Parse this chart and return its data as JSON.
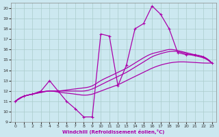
{
  "xlabel": "Windchill (Refroidissement éolien,°C)",
  "xlim": [
    -0.5,
    23.5
  ],
  "ylim": [
    9,
    20.5
  ],
  "yticks": [
    9,
    10,
    11,
    12,
    13,
    14,
    15,
    16,
    17,
    18,
    19,
    20
  ],
  "xticks": [
    0,
    1,
    2,
    3,
    4,
    5,
    6,
    7,
    8,
    9,
    10,
    11,
    12,
    13,
    14,
    15,
    16,
    17,
    18,
    19,
    20,
    21,
    22,
    23
  ],
  "background_color": "#cce8f0",
  "line_color": "#aa00aa",
  "grid_color": "#aacccc",
  "jagged_x": [
    0,
    1,
    2,
    3,
    4,
    5,
    6,
    7,
    8,
    9,
    10,
    11,
    12,
    13,
    14,
    15,
    16,
    17,
    18,
    19,
    20,
    21,
    22,
    23
  ],
  "jagged_y": [
    11.0,
    11.5,
    11.7,
    12.0,
    13.0,
    12.0,
    11.0,
    10.3,
    9.5,
    9.5,
    17.5,
    17.3,
    12.5,
    14.5,
    18.0,
    18.5,
    20.2,
    19.4,
    18.0,
    15.7,
    15.5,
    15.5,
    15.3,
    14.7
  ],
  "smooth1_x": [
    0,
    1,
    2,
    3,
    4,
    5,
    6,
    7,
    8,
    9,
    10,
    11,
    12,
    13,
    14,
    15,
    16,
    17,
    18,
    19,
    20,
    21,
    22,
    23
  ],
  "smooth1_y": [
    11.0,
    11.5,
    11.7,
    11.85,
    12.0,
    11.9,
    11.8,
    11.7,
    11.6,
    11.7,
    12.0,
    12.3,
    12.6,
    13.0,
    13.4,
    13.8,
    14.2,
    14.5,
    14.7,
    14.8,
    14.8,
    14.75,
    14.7,
    14.7
  ],
  "smooth2_x": [
    0,
    1,
    2,
    3,
    4,
    5,
    6,
    7,
    8,
    9,
    10,
    11,
    12,
    13,
    14,
    15,
    16,
    17,
    18,
    19,
    20,
    21,
    22,
    23
  ],
  "smooth2_y": [
    11.0,
    11.5,
    11.7,
    11.9,
    12.0,
    12.0,
    12.0,
    12.0,
    12.0,
    12.2,
    12.6,
    13.0,
    13.4,
    13.8,
    14.3,
    14.8,
    15.3,
    15.6,
    15.8,
    15.8,
    15.6,
    15.4,
    15.2,
    14.7
  ],
  "smooth3_x": [
    0,
    1,
    2,
    3,
    4,
    5,
    6,
    7,
    8,
    9,
    10,
    11,
    12,
    13,
    14,
    15,
    16,
    17,
    18,
    19,
    20,
    21,
    22,
    23
  ],
  "smooth3_y": [
    11.0,
    11.5,
    11.7,
    11.9,
    12.0,
    12.0,
    12.1,
    12.2,
    12.3,
    12.5,
    13.0,
    13.4,
    13.8,
    14.2,
    14.7,
    15.2,
    15.6,
    15.8,
    16.0,
    15.9,
    15.7,
    15.5,
    15.3,
    14.7
  ]
}
